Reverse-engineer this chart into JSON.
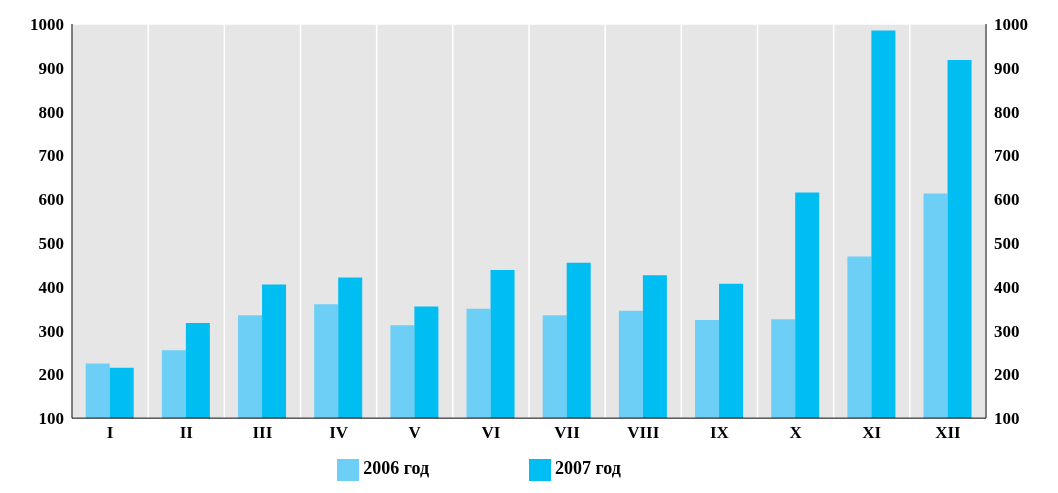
{
  "chart_data": {
    "type": "bar",
    "categories": [
      "I",
      "II",
      "III",
      "IV",
      "V",
      "VI",
      "VII",
      "VIII",
      "IX",
      "X",
      "XI",
      "XII"
    ],
    "series": [
      {
        "name": "2006 год",
        "color": "#6dcff6",
        "values": [
          225,
          255,
          335,
          360,
          312,
          350,
          335,
          345,
          324,
          326,
          469,
          613
        ]
      },
      {
        "name": "2007 год",
        "color": "#00bdf2",
        "values": [
          215,
          317,
          405,
          421,
          355,
          438,
          455,
          426,
          407,
          615,
          985,
          918
        ]
      }
    ],
    "ylim": [
      100,
      1000
    ],
    "yticks": [
      100,
      200,
      300,
      400,
      500,
      600,
      700,
      800,
      900,
      1000
    ],
    "y2lim": [
      100,
      1000
    ],
    "y2ticks": [
      100,
      200,
      300,
      400,
      500,
      600,
      700,
      800,
      900,
      1000
    ],
    "grid": true,
    "legend": "bottom"
  }
}
